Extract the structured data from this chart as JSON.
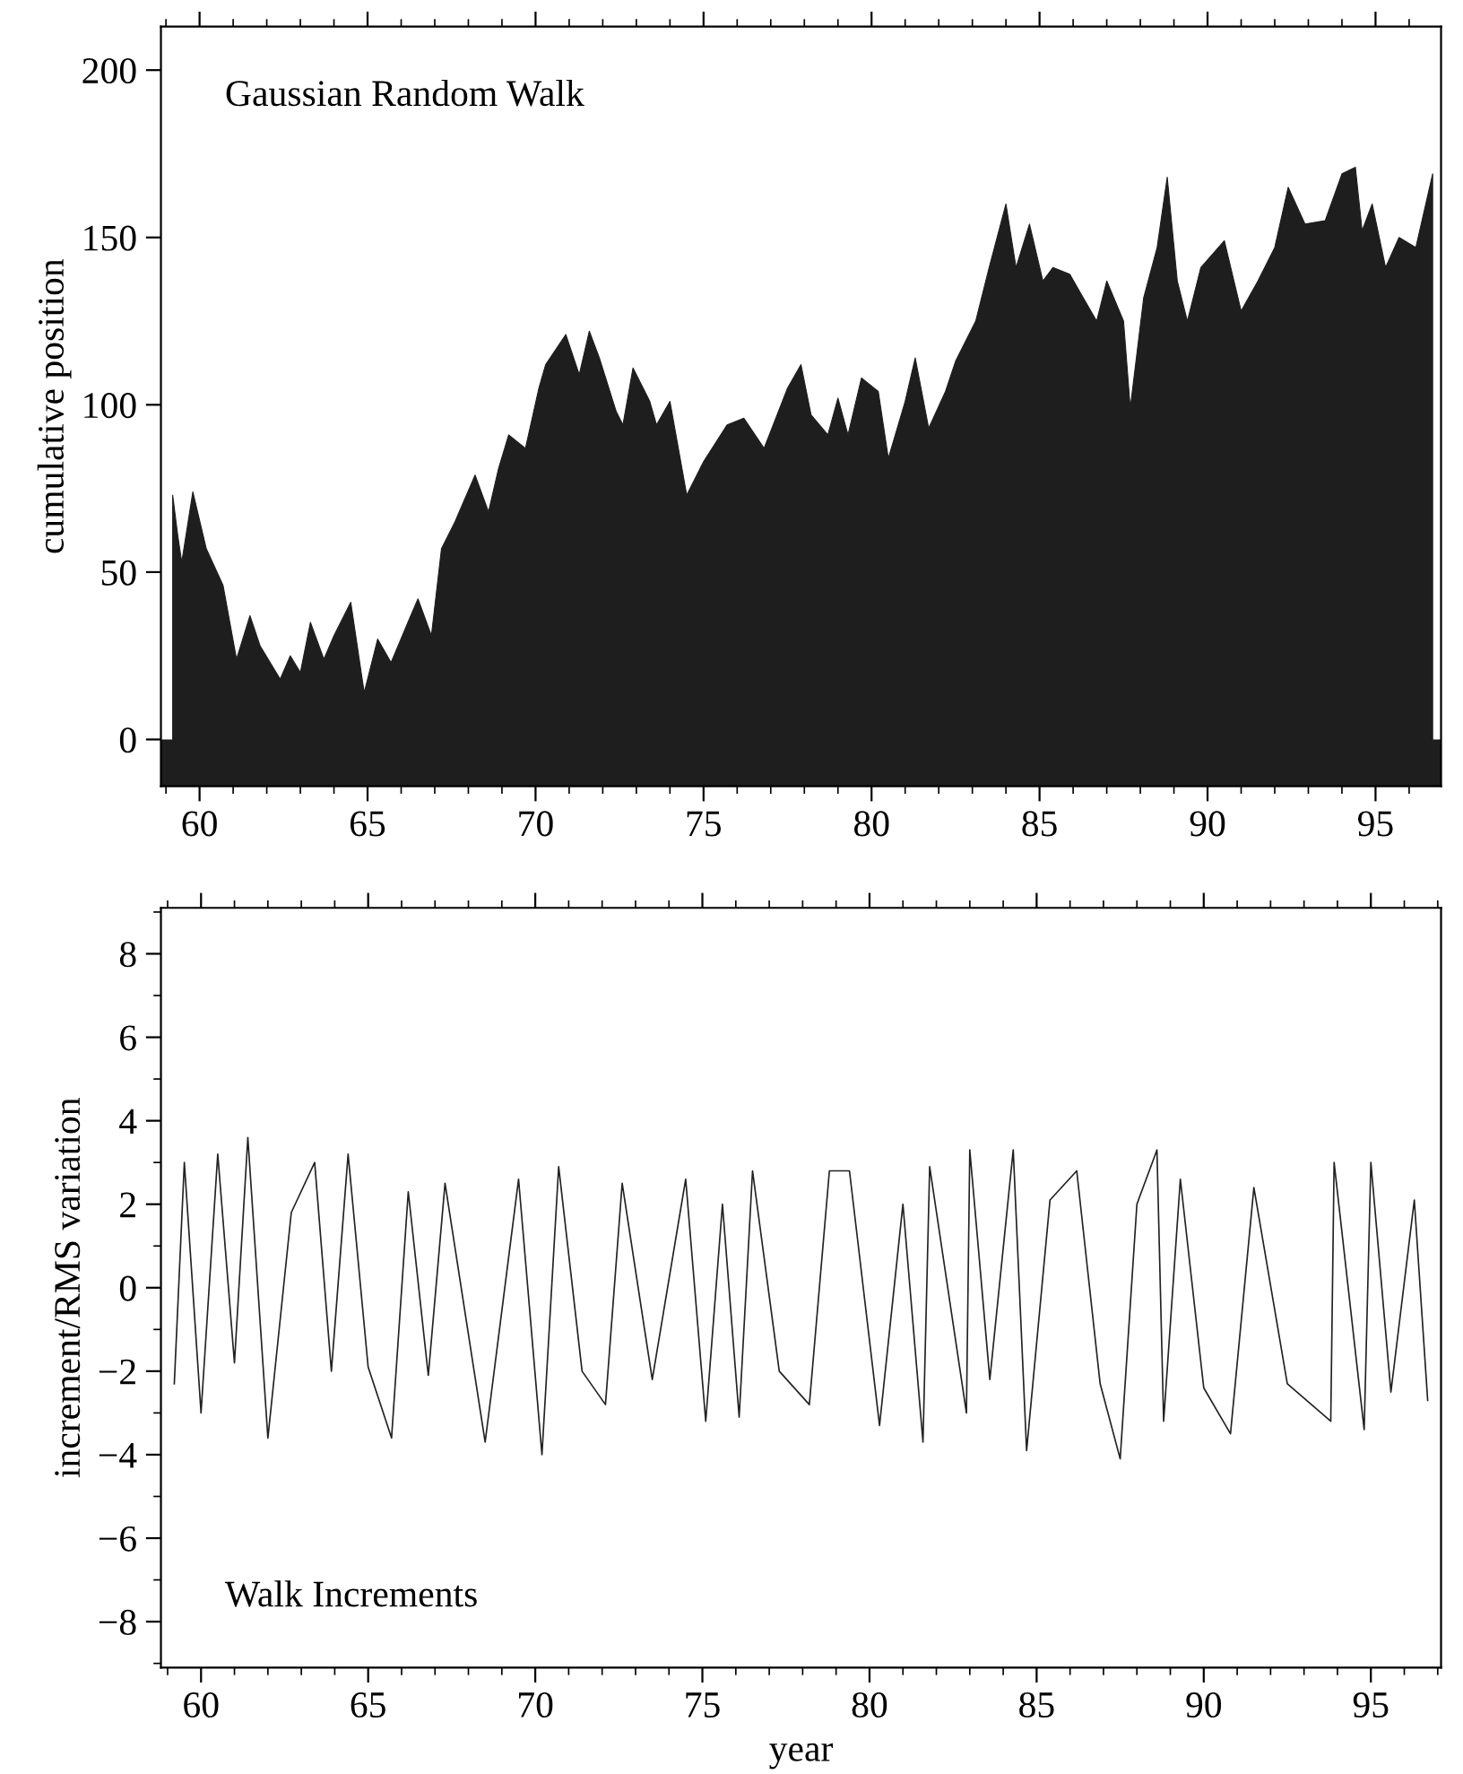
{
  "chart_data": [
    {
      "type": "area",
      "title": "Gaussian Random Walk",
      "ylabel": "cumulative position",
      "xlim": [
        58.85,
        96.95
      ],
      "ylim": [
        -14,
        213
      ],
      "xticks": [
        60,
        65,
        70,
        75,
        80,
        85,
        90,
        95
      ],
      "yticks": [
        0,
        50,
        100,
        150,
        200
      ],
      "grid": false,
      "legend": false,
      "bands": [
        {
          "axis": "y",
          "from": -14,
          "to": 0,
          "color": "#1e1e1e"
        }
      ],
      "series": [
        {
          "color": "#1e1e1e",
          "x": [
            59.2,
            59.35,
            59.47,
            59.8,
            60.2,
            60.7,
            61.1,
            61.5,
            61.8,
            62.4,
            62.7,
            63.0,
            63.3,
            63.7,
            64.0,
            64.5,
            64.9,
            65.3,
            65.7,
            66.2,
            66.5,
            66.9,
            67.2,
            67.6,
            68.2,
            68.6,
            68.9,
            69.2,
            69.7,
            70.1,
            70.3,
            70.9,
            71.3,
            71.6,
            71.9,
            72.4,
            72.6,
            72.9,
            73.4,
            73.6,
            74.0,
            74.5,
            75.0,
            75.7,
            76.2,
            76.8,
            77.5,
            77.9,
            78.2,
            78.7,
            79.0,
            79.3,
            79.7,
            80.2,
            80.5,
            81.0,
            81.3,
            81.7,
            82.2,
            82.5,
            83.1,
            83.5,
            84.0,
            84.3,
            84.7,
            85.1,
            85.4,
            85.9,
            86.3,
            86.7,
            87.0,
            87.5,
            87.7,
            88.1,
            88.5,
            88.8,
            89.1,
            89.4,
            89.8,
            90.5,
            91.0,
            91.5,
            92.0,
            92.4,
            92.9,
            93.5,
            94.0,
            94.4,
            94.6,
            94.9,
            95.3,
            95.7,
            96.2,
            96.7
          ],
          "values": [
            73,
            61,
            53,
            74,
            57,
            46,
            24,
            37,
            28,
            18,
            25,
            20,
            35,
            24,
            31,
            41,
            14,
            30,
            23,
            35,
            42,
            31,
            57,
            65,
            79,
            68,
            81,
            91,
            87,
            105,
            112,
            121,
            109,
            122,
            114,
            98,
            94,
            111,
            101,
            94,
            101,
            73,
            83,
            94,
            96,
            87,
            105,
            112,
            97,
            91,
            102,
            91,
            108,
            104,
            84,
            101,
            114,
            93,
            104,
            113,
            125,
            141,
            160,
            141,
            154,
            137,
            141,
            139,
            132,
            125,
            137,
            125,
            99,
            132,
            147,
            168,
            137,
            125,
            141,
            149,
            128,
            137,
            147,
            165,
            154,
            155,
            169,
            171,
            152,
            160,
            141,
            150,
            147,
            169
          ]
        }
      ]
    },
    {
      "type": "line",
      "title": "Walk Increments",
      "xlabel": "year",
      "ylabel": "increment/RMS variation",
      "xlim": [
        58.8,
        97.1
      ],
      "ylim": [
        -9.1,
        9.1
      ],
      "xticks": [
        60,
        65,
        70,
        75,
        80,
        85,
        90,
        95
      ],
      "yticks": [
        -8,
        -6,
        -4,
        -2,
        0,
        2,
        4,
        6,
        8
      ],
      "grid": false,
      "legend": false,
      "series": [
        {
          "color": "#222222",
          "x": [
            59.2,
            59.5,
            60.0,
            60.5,
            61.0,
            61.4,
            62.0,
            62.7,
            63.4,
            63.9,
            64.4,
            65.0,
            65.7,
            66.2,
            66.8,
            67.3,
            68.5,
            69.5,
            70.2,
            70.7,
            71.4,
            72.1,
            72.6,
            73.5,
            74.5,
            75.1,
            75.6,
            76.1,
            76.5,
            77.3,
            78.2,
            78.8,
            79.4,
            80.3,
            81.0,
            81.6,
            81.8,
            82.9,
            83.0,
            83.6,
            84.3,
            84.7,
            85.4,
            86.2,
            86.9,
            87.5,
            88.0,
            88.6,
            88.8,
            89.3,
            90.0,
            90.8,
            91.5,
            92.5,
            93.8,
            93.9,
            94.8,
            95.0,
            95.6,
            96.3,
            96.7
          ],
          "values": [
            -2.3,
            3.0,
            -3.0,
            3.2,
            -1.8,
            3.6,
            -3.6,
            1.8,
            3.0,
            -2.0,
            3.2,
            -1.9,
            -3.6,
            2.3,
            -2.1,
            2.5,
            -3.7,
            2.6,
            -4.0,
            2.9,
            -2.0,
            -2.8,
            2.5,
            -2.2,
            2.6,
            -3.2,
            2.0,
            -3.1,
            2.8,
            -2.0,
            -2.8,
            2.8,
            2.8,
            -3.3,
            2.0,
            -3.7,
            2.9,
            -3.0,
            3.3,
            -2.2,
            3.3,
            -3.9,
            2.1,
            2.8,
            -2.3,
            -4.1,
            2.0,
            3.3,
            -3.2,
            2.6,
            -2.4,
            -3.5,
            2.4,
            -2.3,
            -3.2,
            3.0,
            -3.4,
            3.0,
            -2.5,
            2.1,
            -2.7
          ]
        }
      ]
    }
  ]
}
